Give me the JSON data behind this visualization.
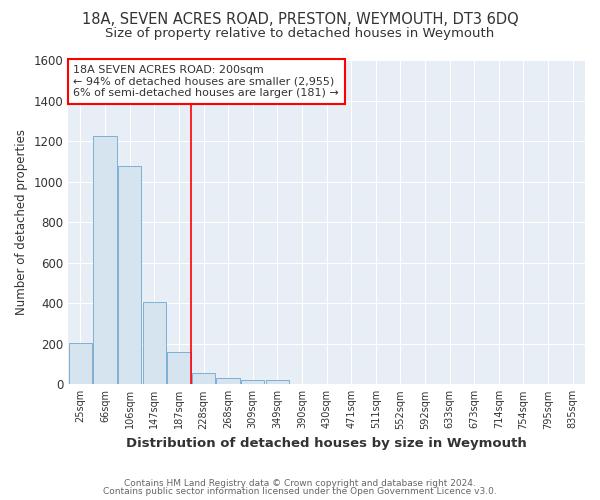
{
  "title": "18A, SEVEN ACRES ROAD, PRESTON, WEYMOUTH, DT3 6DQ",
  "subtitle": "Size of property relative to detached houses in Weymouth",
  "xlabel": "Distribution of detached houses by size in Weymouth",
  "ylabel": "Number of detached properties",
  "categories": [
    "25sqm",
    "66sqm",
    "106sqm",
    "147sqm",
    "187sqm",
    "228sqm",
    "268sqm",
    "309sqm",
    "349sqm",
    "390sqm",
    "430sqm",
    "471sqm",
    "511sqm",
    "552sqm",
    "592sqm",
    "633sqm",
    "673sqm",
    "714sqm",
    "754sqm",
    "795sqm",
    "835sqm"
  ],
  "values": [
    205,
    1225,
    1075,
    405,
    160,
    55,
    30,
    20,
    20,
    0,
    0,
    0,
    0,
    0,
    0,
    0,
    0,
    0,
    0,
    0,
    0
  ],
  "bar_color": "#d6e4f0",
  "bar_edge_color": "#7eb0d4",
  "red_line_x": 4.5,
  "ylim": [
    0,
    1600
  ],
  "yticks": [
    0,
    200,
    400,
    600,
    800,
    1000,
    1200,
    1400,
    1600
  ],
  "annotation_text": "18A SEVEN ACRES ROAD: 200sqm\n← 94% of detached houses are smaller (2,955)\n6% of semi-detached houses are larger (181) →",
  "footnote1": "Contains HM Land Registry data © Crown copyright and database right 2024.",
  "footnote2": "Contains public sector information licensed under the Open Government Licence v3.0.",
  "bg_color": "#ffffff",
  "plot_bg_color": "#e8eef5",
  "grid_color": "#ffffff",
  "title_fontsize": 10.5,
  "subtitle_fontsize": 9.5,
  "ylabel_fontsize": 8.5,
  "xlabel_fontsize": 9.5
}
